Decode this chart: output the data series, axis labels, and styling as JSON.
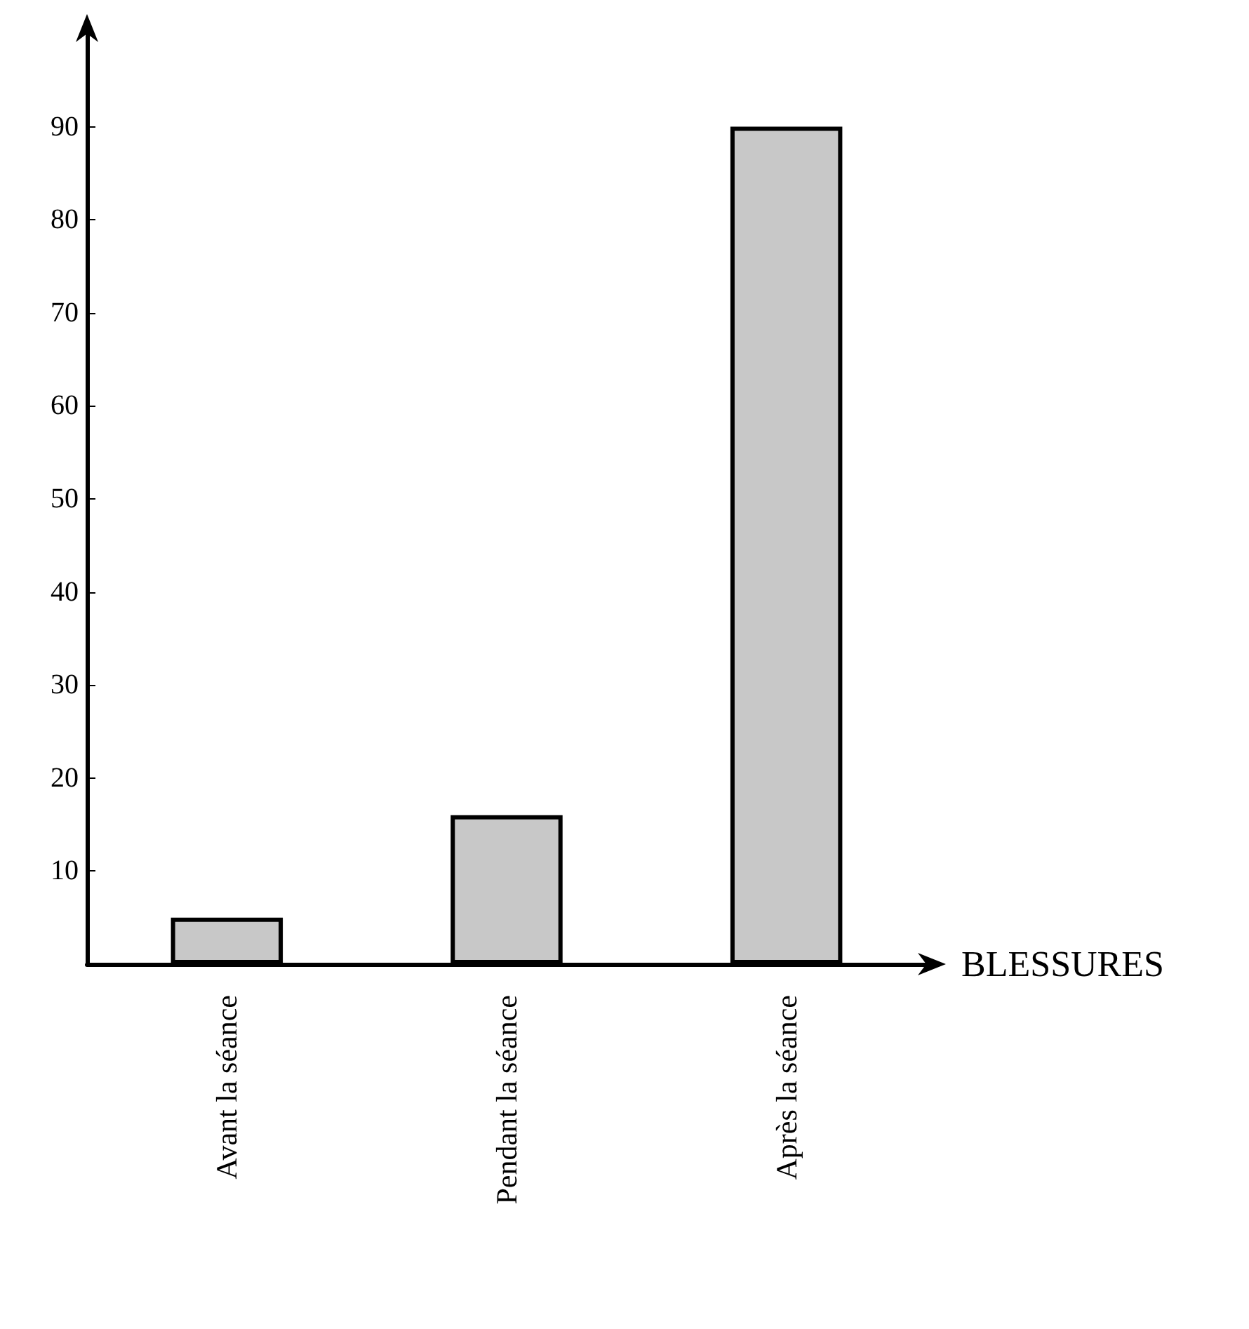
{
  "chart_data": {
    "type": "bar",
    "xlabel": "BLESSURES",
    "categories": [
      "Avant la séance",
      "Pendant la séance",
      "Après la séance"
    ],
    "values": [
      5,
      16,
      90
    ],
    "color": "#c8c8c8",
    "ylim": [
      0,
      100
    ],
    "yticks": [
      10,
      20,
      30,
      40,
      50,
      60,
      70,
      80,
      90
    ],
    "grid": false
  }
}
